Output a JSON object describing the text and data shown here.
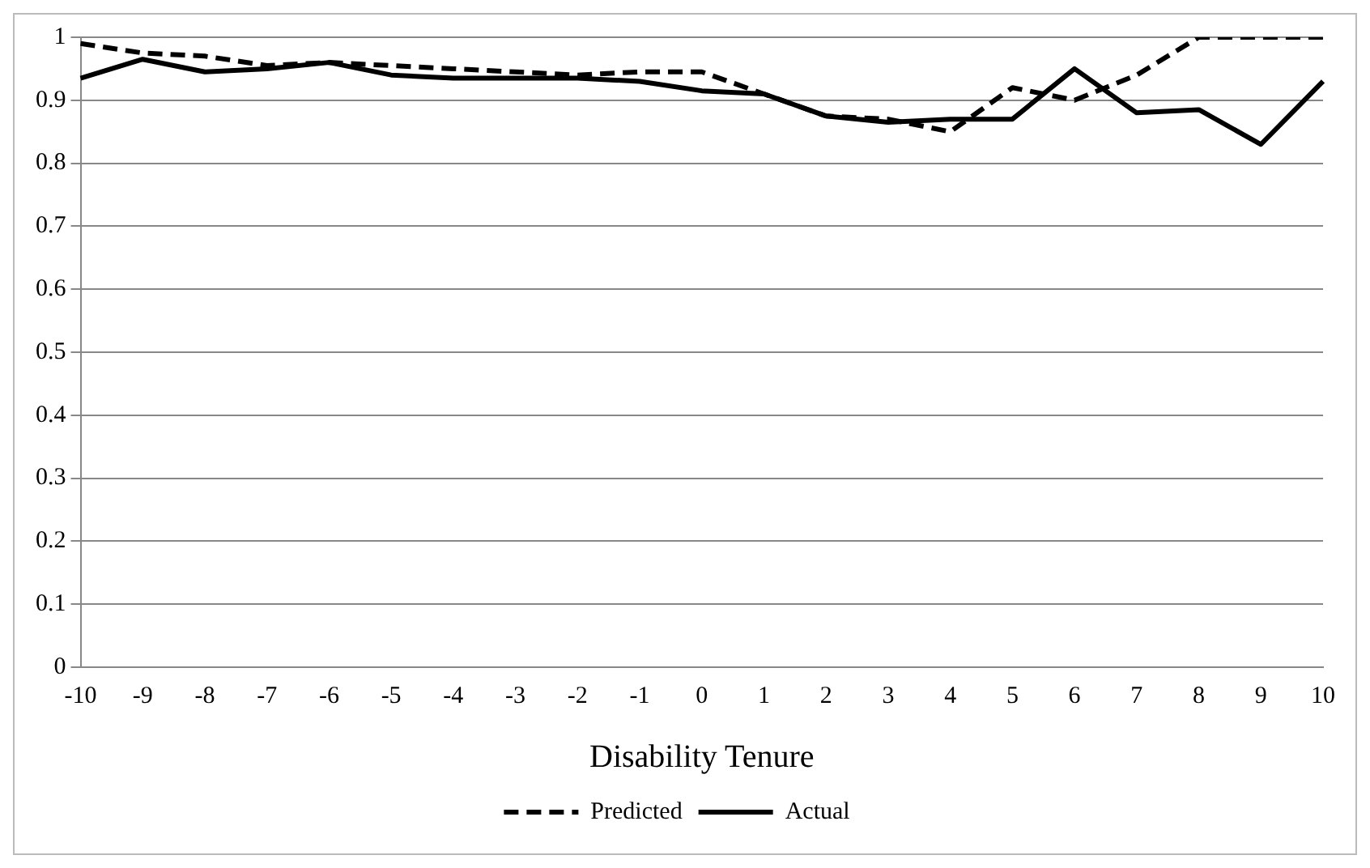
{
  "chart_data": {
    "type": "line",
    "xlabel": "Disability Tenure",
    "categories": [
      "-10",
      "-9",
      "-8",
      "-7",
      "-6",
      "-5",
      "-4",
      "-3",
      "-2",
      "-1",
      "0",
      "1",
      "2",
      "3",
      "4",
      "5",
      "6",
      "7",
      "8",
      "9",
      "10"
    ],
    "series": [
      {
        "name": "Predicted",
        "color": "#000000",
        "line_style": "dashed",
        "values": [
          0.99,
          0.975,
          0.97,
          0.955,
          0.96,
          0.955,
          0.95,
          0.945,
          0.94,
          0.945,
          0.945,
          0.91,
          0.875,
          0.87,
          0.85,
          0.92,
          0.9,
          0.94,
          1.0,
          1.0,
          1.0
        ]
      },
      {
        "name": "Actual",
        "color": "#000000",
        "line_style": "solid",
        "values": [
          0.935,
          0.965,
          0.945,
          0.95,
          0.96,
          0.94,
          0.935,
          0.935,
          0.935,
          0.93,
          0.915,
          0.91,
          0.875,
          0.865,
          0.87,
          0.87,
          0.95,
          0.88,
          0.885,
          0.83,
          0.93
        ]
      }
    ],
    "ylim": [
      0,
      1
    ],
    "yticks": [
      0,
      0.1,
      0.2,
      0.3,
      0.4,
      0.5,
      0.6,
      0.7,
      0.8,
      0.9,
      1
    ],
    "grid": "y",
    "legend": "bottom",
    "marker": "none"
  }
}
